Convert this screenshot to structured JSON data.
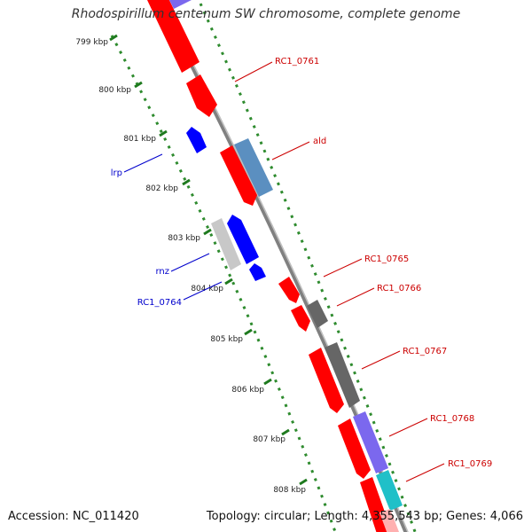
{
  "title": "Rhodospirillum centenum SW chromosome, complete genome",
  "accession": "Accession: NC_011420",
  "summary": "Topology: circular; Length: 4,355,543 bp; Genes: 4,066",
  "tick_labels": [
    "799 kbp",
    "800 kbp",
    "801 kbp",
    "802 kbp",
    "803 kbp",
    "804 kbp",
    "805 kbp",
    "806 kbp",
    "807 kbp",
    "808 kbp"
  ],
  "colors": {
    "backbone": "#808080",
    "ticks": "#2e8b2e",
    "forward_cds": "#ff0000",
    "reverse_cds": "#0000ff",
    "forward_rna": "#5b6f8f",
    "pseudo": "#c8c8c8",
    "other_gene": "#666666",
    "purple_track": "#7b68ee",
    "cyan_track": "#20c0c8",
    "label_forward": "#cc0000",
    "label_reverse": "#0000cc"
  },
  "forward_labels": [
    "RC1_0761",
    "ald",
    "RC1_0765",
    "RC1_0766",
    "RC1_0767",
    "RC1_0768",
    "RC1_0769"
  ],
  "reverse_labels": [
    "lrp",
    "rnz",
    "RC1_0764"
  ]
}
